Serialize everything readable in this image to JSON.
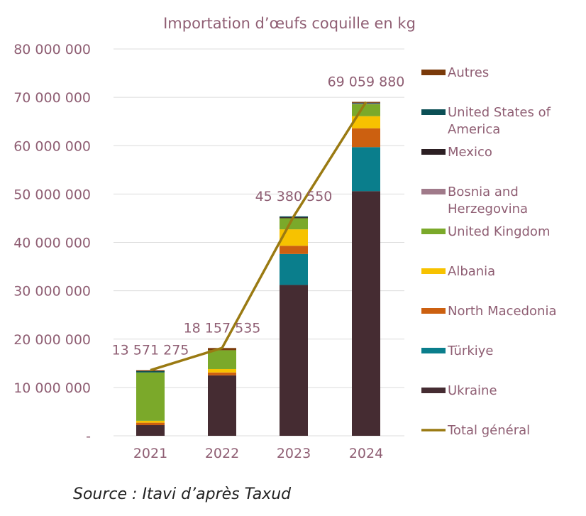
{
  "chart_data": {
    "type": "bar",
    "stacked": true,
    "title": "Importation d’œufs coquille en kg",
    "categories": [
      "2021",
      "2022",
      "2023",
      "2024"
    ],
    "ylim": [
      0,
      80000000
    ],
    "yticks": [
      {
        "value": 0,
        "label": "-"
      },
      {
        "value": 10000000,
        "label": "10 000 000"
      },
      {
        "value": 20000000,
        "label": "20 000 000"
      },
      {
        "value": 30000000,
        "label": "30 000 000"
      },
      {
        "value": 40000000,
        "label": "40 000 000"
      },
      {
        "value": 50000000,
        "label": "50 000 000"
      },
      {
        "value": 60000000,
        "label": "60 000 000"
      },
      {
        "value": 70000000,
        "label": "70 000 000"
      },
      {
        "value": 80000000,
        "label": "80 000 000"
      }
    ],
    "grid": true,
    "legend_position": "right",
    "series": [
      {
        "name": "Ukraine",
        "color": "#452c32",
        "values": [
          2200000,
          12500000,
          31200000,
          50600000
        ]
      },
      {
        "name": "Türkiye",
        "color": "#0a7e8c",
        "values": [
          0,
          0,
          6400000,
          9100000
        ]
      },
      {
        "name": "North Macedonia",
        "color": "#cc6010",
        "values": [
          500000,
          600000,
          1700000,
          3900000
        ]
      },
      {
        "name": "Albania",
        "color": "#f7c200",
        "values": [
          400000,
          700000,
          3400000,
          2500000
        ]
      },
      {
        "name": "United Kingdom",
        "color": "#7ba92a",
        "values": [
          10000000,
          3900000,
          2300000,
          2500000
        ]
      },
      {
        "name": "Bosnia and Herzegovina",
        "color": "#a07a8a",
        "values": [
          0,
          0,
          0,
          200000
        ]
      },
      {
        "name": "Mexico",
        "color": "#2c1f23",
        "values": [
          0,
          0,
          200000,
          0
        ]
      },
      {
        "name": "United States of America",
        "color": "#0b4f55",
        "values": [
          271275,
          0,
          180550,
          59880
        ]
      },
      {
        "name": "Autres",
        "color": "#7a3a0a",
        "values": [
          200000,
          457535,
          0,
          200000
        ]
      }
    ],
    "line": {
      "name": "Total général",
      "color": "#9a7a12",
      "values": [
        13571275,
        18157535,
        45380550,
        69059880
      ]
    },
    "data_labels": [
      "13 571 275",
      "18 157 535",
      "45 380 550",
      "69 059 880"
    ],
    "legend_order": [
      "Autres",
      "United States of America",
      "Mexico",
      "Bosnia and Herzegovina",
      "United Kingdom",
      "Albania",
      "North Macedonia",
      "Türkiye",
      "Ukraine",
      "Total général"
    ]
  },
  "legend_display": {
    "Autres": [
      "Autres"
    ],
    "United States of America": [
      "United States of",
      "America"
    ],
    "Mexico": [
      "Mexico"
    ],
    "Bosnia and Herzegovina": [
      "Bosnia and",
      "Herzegovina"
    ],
    "United Kingdom": [
      "United Kingdom"
    ],
    "Albania": [
      "Albania"
    ],
    "North Macedonia": [
      "North Macedonia"
    ],
    "Türkiye": [
      "Türkiye"
    ],
    "Ukraine": [
      "Ukraine"
    ],
    "Total général": [
      "Total général"
    ]
  },
  "source": "Source : Itavi d’après Taxud"
}
